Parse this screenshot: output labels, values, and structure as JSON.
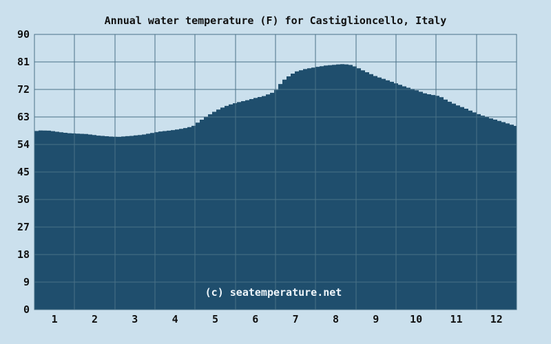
{
  "page": {
    "watermark": "(c) seatemperature.net"
  },
  "chart_data": {
    "type": "area",
    "title": "Annual water temperature (F) for Castiglioncello, Italy",
    "xlabel": "",
    "ylabel": "",
    "x_tick_labels": [
      "1",
      "2",
      "3",
      "4",
      "5",
      "6",
      "7",
      "8",
      "9",
      "10",
      "11",
      "12"
    ],
    "y_ticks": [
      0,
      9,
      18,
      27,
      36,
      45,
      54,
      63,
      72,
      81,
      90
    ],
    "ylim": [
      0,
      90
    ],
    "xlim_months": [
      0,
      12
    ],
    "grid": true,
    "legend": "none",
    "categories": [
      "1",
      "2",
      "3",
      "4",
      "5",
      "6",
      "7",
      "8",
      "9",
      "10",
      "11",
      "12"
    ],
    "monthly_values_f": [
      58.2,
      57.3,
      57.0,
      58.7,
      64.9,
      69.4,
      77.8,
      80.1,
      76.3,
      71.8,
      67.0,
      62.0
    ],
    "min_f": 56.5,
    "max_f": 80.3,
    "curve_samples": [
      [
        0.0,
        58.3
      ],
      [
        0.15,
        58.6
      ],
      [
        0.4,
        58.5
      ],
      [
        0.6,
        58.1
      ],
      [
        0.85,
        57.7
      ],
      [
        1.0,
        57.6
      ],
      [
        1.3,
        57.4
      ],
      [
        1.6,
        56.9
      ],
      [
        1.9,
        56.6
      ],
      [
        2.1,
        56.5
      ],
      [
        2.4,
        56.8
      ],
      [
        2.7,
        57.2
      ],
      [
        2.95,
        57.8
      ],
      [
        3.1,
        58.2
      ],
      [
        3.4,
        58.6
      ],
      [
        3.7,
        59.2
      ],
      [
        3.95,
        60.0
      ],
      [
        4.1,
        61.5
      ],
      [
        4.3,
        63.3
      ],
      [
        4.5,
        64.9
      ],
      [
        4.7,
        66.2
      ],
      [
        4.9,
        67.2
      ],
      [
        5.1,
        67.9
      ],
      [
        5.3,
        68.5
      ],
      [
        5.5,
        69.2
      ],
      [
        5.7,
        69.8
      ],
      [
        5.9,
        70.8
      ],
      [
        6.0,
        71.5
      ],
      [
        6.1,
        73.5
      ],
      [
        6.25,
        75.6
      ],
      [
        6.5,
        77.8
      ],
      [
        6.75,
        78.7
      ],
      [
        7.0,
        79.3
      ],
      [
        7.25,
        79.8
      ],
      [
        7.5,
        80.1
      ],
      [
        7.65,
        80.3
      ],
      [
        7.85,
        80.1
      ],
      [
        8.0,
        79.4
      ],
      [
        8.2,
        78.1
      ],
      [
        8.5,
        76.3
      ],
      [
        8.75,
        75.2
      ],
      [
        9.0,
        74.0
      ],
      [
        9.25,
        72.8
      ],
      [
        9.5,
        71.8
      ],
      [
        9.75,
        70.6
      ],
      [
        10.0,
        70.0
      ],
      [
        10.1,
        69.7
      ],
      [
        10.3,
        68.2
      ],
      [
        10.5,
        67.0
      ],
      [
        10.75,
        65.7
      ],
      [
        11.0,
        64.2
      ],
      [
        11.25,
        63.0
      ],
      [
        11.5,
        62.0
      ],
      [
        11.75,
        61.0
      ],
      [
        12.0,
        60.0
      ]
    ],
    "colors": {
      "background": "#cbe0ed",
      "area_fill": "#1f4e6d",
      "grid": "#4a7187",
      "text": "#111111",
      "watermark_text": "#eef5fa"
    }
  }
}
